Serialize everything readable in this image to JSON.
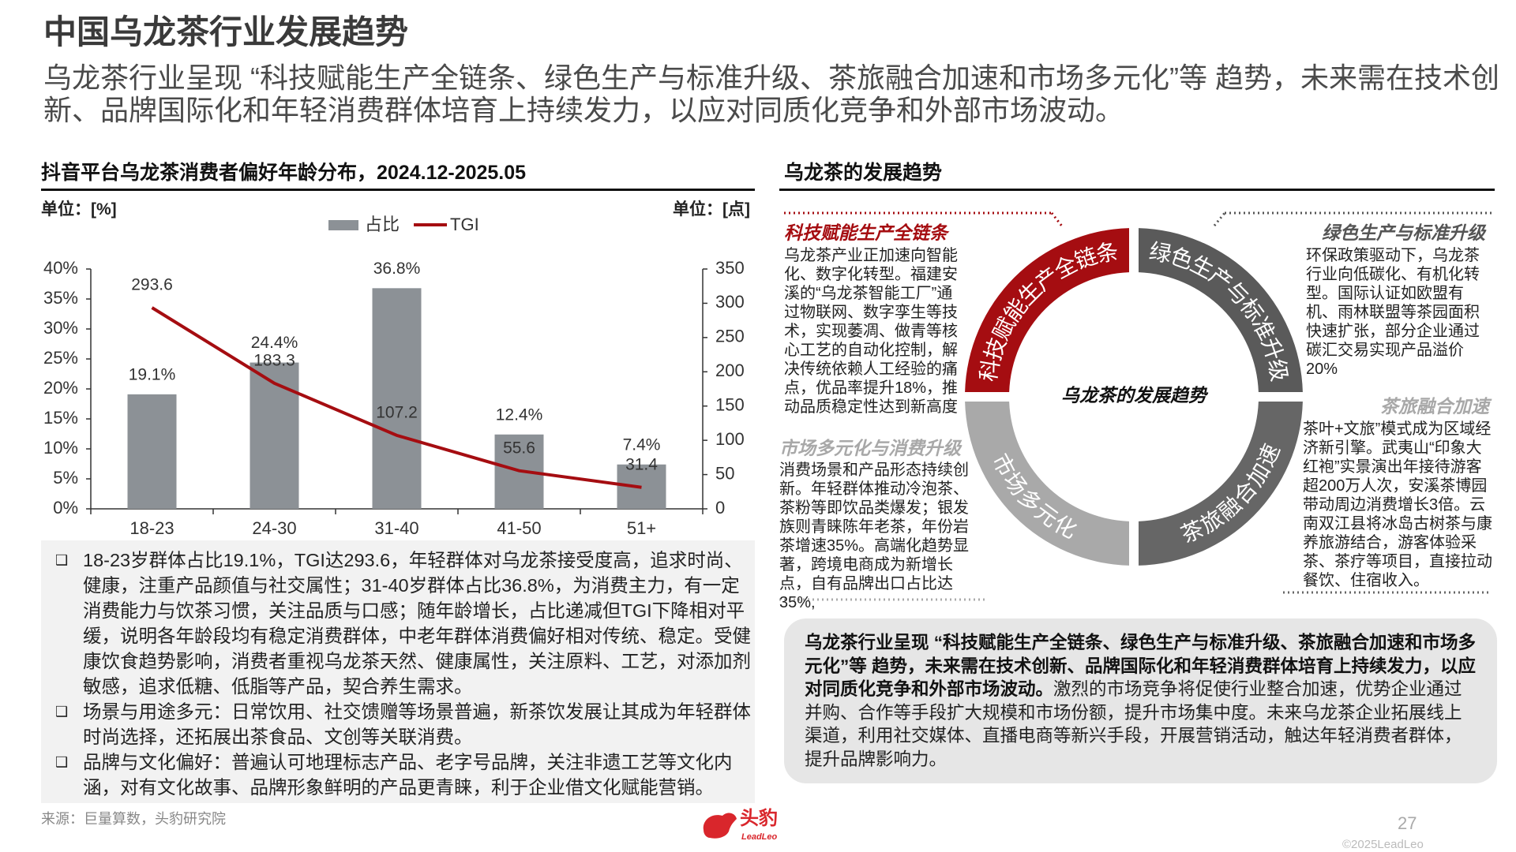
{
  "header": {
    "title": "中国乌龙茶行业发展趋势",
    "subtitle": "乌龙茶行业呈现 “科技赋能生产全链条、绿色生产与标准升级、茶旅融合加速和市场多元化”等 趋势，未来需在技术创新、品牌国际化和年轻消费群体培育上持续发力，以应对同质化竞争和外部市场波动。"
  },
  "chart_data": {
    "type": "bar",
    "title": "抖音平台乌龙茶消费者偏好年龄分布，2024.12-2025.05",
    "y_unit": "单位：[%]",
    "y2_unit": "单位：[点]",
    "categories": [
      "18-23",
      "24-30",
      "31-40",
      "41-50",
      "51+"
    ],
    "series": [
      {
        "name": "占比",
        "color": "#8c9196",
        "values": [
          19.1,
          24.4,
          36.8,
          12.4,
          7.4
        ],
        "value_labels": [
          "19.1%",
          "24.4%",
          "36.8%",
          "12.4%",
          "7.4%"
        ]
      },
      {
        "name": "TGI",
        "type": "line",
        "axis": "y2",
        "color": "#a50d11",
        "values": [
          293.6,
          183.3,
          107.2,
          55.6,
          31.4
        ]
      }
    ],
    "ylim": [
      0,
      40
    ],
    "yticks": [
      {
        "value": 0,
        "label": "0%"
      },
      {
        "value": 5,
        "label": "5%"
      },
      {
        "value": 10,
        "label": "10%"
      },
      {
        "value": 15,
        "label": "15%"
      },
      {
        "value": 20,
        "label": "20%"
      },
      {
        "value": 25,
        "label": "25%"
      },
      {
        "value": 30,
        "label": "30%"
      },
      {
        "value": 35,
        "label": "35%"
      },
      {
        "value": 40,
        "label": "40%"
      }
    ],
    "y2lim": [
      0,
      350
    ],
    "y2ticks": [
      0,
      50,
      100,
      150,
      200,
      250,
      300,
      350
    ],
    "legend": "top"
  },
  "notes": [
    "18-23岁群体占比19.1%，TGI达293.6，年轻群体对乌龙茶接受度高，追求时尚、健康，注重产品颜值与社交属性；31-40岁群体占比36.8%，为消费主力，有一定消费能力与饮茶习惯，关注品质与口感；随年龄增长，占比递减但TGI下降相对平缓，说明各年龄段均有稳定消费群体，中老年群体消费偏好相对传统、稳定。受健康饮食趋势影响，消费者重视乌龙茶天然、健康属性，关注原料、工艺，对添加剂敏感，追求低糖、低脂等产品，契合养生需求。",
    "场景与用途多元：日常饮用、社交馈赠等场景普遍，新茶饮发展让其成为年轻群体时尚选择，还拓展出茶食品、文创等关联消费。",
    "品牌与文化偏好：普遍认可地理标志产品、老字号品牌，关注非遗工艺等文化内涵，对有文化故事、品牌形象鲜明的产品更青睐，利于企业借文化赋能营销。"
  ],
  "source": "来源：巨量算数，头豹研究院",
  "trends": {
    "title": "乌龙茶的发展趋势",
    "center": "乌龙茶的发展趋势",
    "items": [
      {
        "ring_label": "科技赋能生产全链条",
        "title": "科技赋能生产全链条",
        "text": "乌龙茶产业正加速向智能化、数字化转型。福建安溪的“乌龙茶智能工厂”通过物联网、数字孪生等技术，实现萎凋、做青等核心工艺的自动化控制，解决传统依赖人工经验的痛点，优品率提升18%，推动品质稳定性达到新高度"
      },
      {
        "ring_label": "绿色生产与标准升级",
        "title": "绿色生产与标准升级",
        "text": "环保政策驱动下，乌龙茶行业向低碳化、有机化转型。国际认证如欧盟有机、雨林联盟等茶园面积快速扩张，部分企业通过碳汇交易实现产品溢价20%"
      },
      {
        "ring_label": "市场多元化",
        "title": "市场多元化与消费升级",
        "text": "消费场景和产品形态持续创新。年轻群体推动冷泡茶、茶粉等即饮品类爆发；银发族则青睐陈年老茶，年份岩茶增速35%。高端化趋势显著，跨境电商成为新增长点，自有品牌出口占比达35%,"
      },
      {
        "ring_label": "茶旅融合加速",
        "title": "茶旅融合加速",
        "text": "茶叶+文旅”模式成为区域经济新引擎。武夷山“印象大红袍”实景演出年接待游客超200万人次，安溪茶博园带动周边消费增长3倍。云南双江县将冰岛古树茶与康养旅游结合，游客体验采茶、茶疗等项目，直接拉动餐饮、住宿收入。"
      }
    ],
    "summary": {
      "bold": "乌龙茶行业呈现 “科技赋能生产全链条、绿色生产与标准升级、茶旅融合加速和市场多元化”等 趋势，未来需在技术创新、品牌国际化和年轻消费群体培育上持续发力，以应对同质化竞争和外部市场波动。",
      "text": "激烈的市场竞争将促使行业整合加速，优势企业通过并购、合作等手段扩大规模和市场份额，提升市场集中度。未来乌龙茶企业拓展线上渠道，利用社交媒体、直播电商等新兴手段，开展营销活动，触达年轻消费者群体，提升品牌影响力。"
    }
  },
  "footer": {
    "logo_cn": "头豹",
    "logo_en": "LeadLeo",
    "page": "27",
    "copyright": "©2025LeadLeo"
  }
}
